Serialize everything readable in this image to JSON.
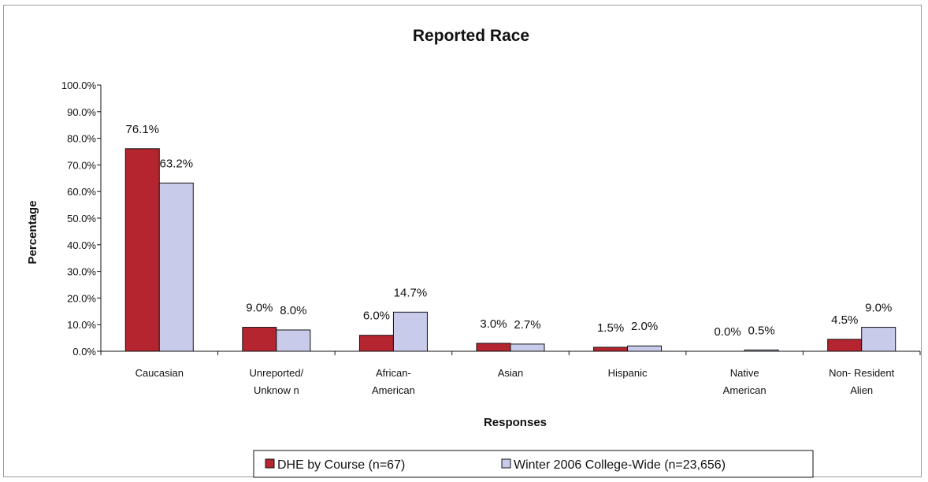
{
  "chart_data": {
    "type": "bar",
    "title": "Reported Race",
    "xlabel": "Responses",
    "ylabel": "Percentage",
    "ylim": [
      0,
      100
    ],
    "yticks": [
      "0.0%",
      "10.0%",
      "20.0%",
      "30.0%",
      "40.0%",
      "50.0%",
      "60.0%",
      "70.0%",
      "80.0%",
      "90.0%",
      "100.0%"
    ],
    "categories": [
      [
        "Caucasian"
      ],
      [
        "Unreported/",
        "Unknow n"
      ],
      [
        "African-",
        "American"
      ],
      [
        "Asian"
      ],
      [
        "Hispanic"
      ],
      [
        "Native",
        "American"
      ],
      [
        "Non- Resident",
        "Alien"
      ]
    ],
    "series": [
      {
        "name": "DHE by Course (n=67)",
        "color": "#b5252f",
        "values": [
          76.1,
          9.0,
          6.0,
          3.0,
          1.5,
          0.0,
          4.5
        ],
        "labels": [
          "76.1%",
          "9.0%",
          "6.0%",
          "3.0%",
          "1.5%",
          "0.0%",
          "4.5%"
        ]
      },
      {
        "name": "Winter 2006 College-Wide (n=23,656)",
        "color": "#c9cbeb",
        "values": [
          63.2,
          8.0,
          14.7,
          2.7,
          2.0,
          0.5,
          9.0
        ],
        "labels": [
          "63.2%",
          "8.0%",
          "14.7%",
          "2.7%",
          "2.0%",
          "0.5%",
          "9.0%"
        ]
      }
    ],
    "grid": false,
    "legend_position": "bottom"
  }
}
